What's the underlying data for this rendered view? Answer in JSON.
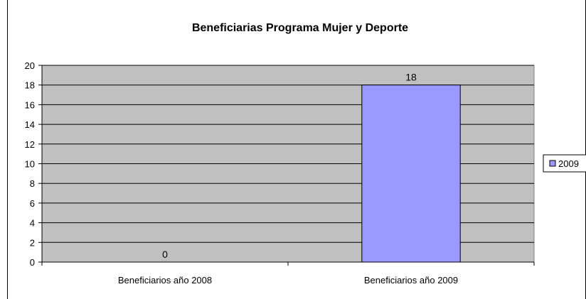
{
  "chart_data": {
    "type": "bar",
    "title": "Beneficiarias Programa Mujer y Deporte",
    "categories": [
      "Beneficiarios año 2008",
      "Beneficiarios año 2009"
    ],
    "series": [
      {
        "name": "2009",
        "values": [
          0,
          18
        ],
        "color": "#9999FF"
      }
    ],
    "ylim": [
      0,
      20
    ],
    "y_ticks": [
      0,
      2,
      4,
      6,
      8,
      10,
      12,
      14,
      16,
      18,
      20
    ],
    "data_labels": [
      "0",
      "18"
    ],
    "xlabel": "",
    "ylabel": "",
    "grid": true,
    "legend_position": "right",
    "plot_background": "#C0C0C0"
  }
}
